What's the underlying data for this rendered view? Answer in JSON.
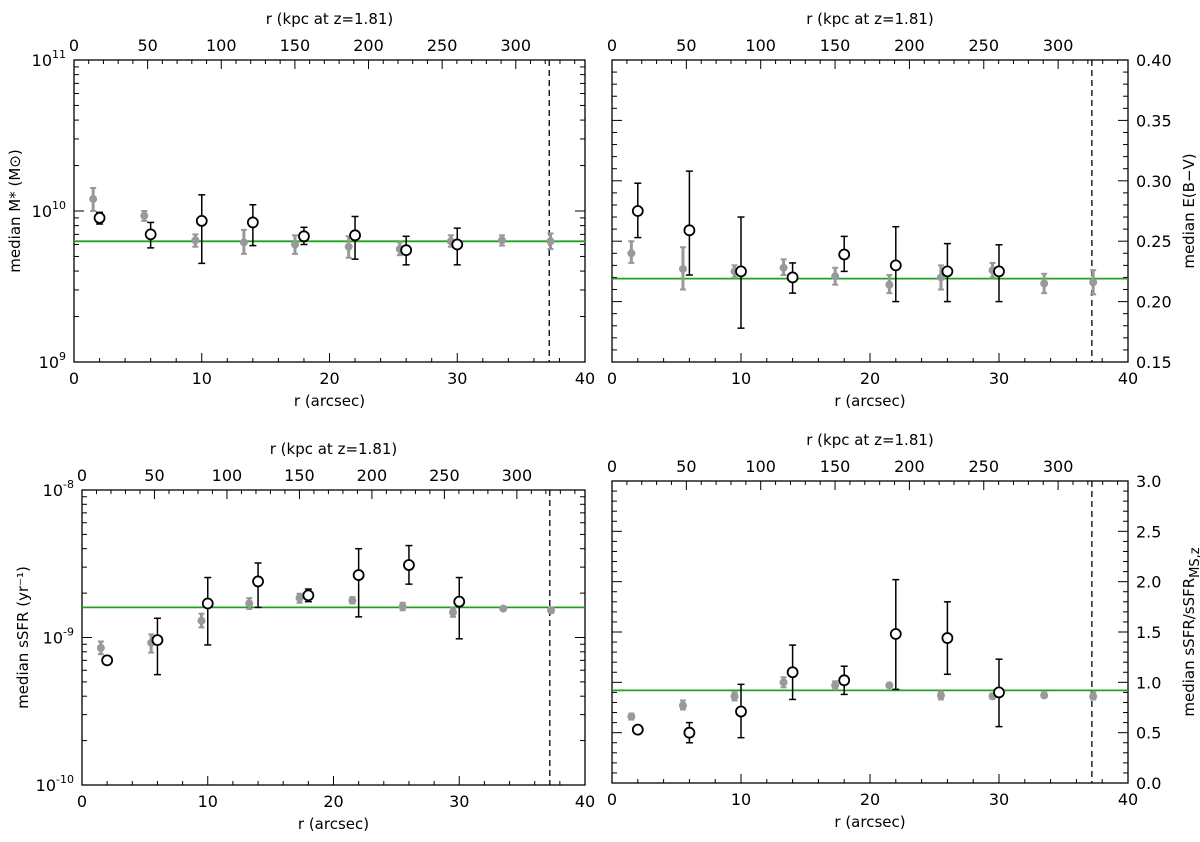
{
  "chart_data": [
    {
      "type": "scatter",
      "xlabel": "r (arcsec)",
      "x2label": "r (kpc at z=1.81)",
      "ylabel": "median M* (M⊙)",
      "yscale": "log",
      "xlim": [
        0,
        40
      ],
      "ylim": [
        1000000000.0,
        100000000000.0
      ],
      "x2lim": [
        0,
        347
      ],
      "xticks": [
        0,
        10,
        20,
        30,
        40
      ],
      "x2ticks": [
        0,
        50,
        100,
        150,
        200,
        250,
        300
      ],
      "yticks": [
        1000000000.0,
        10000000000.0,
        100000000000.0
      ],
      "yaxis_side": "left",
      "reference_line_y": 6300000000.0,
      "vline_x": 37.2,
      "series": [
        {
          "marker": "filled circle",
          "color": "#999999",
          "points": [
            {
              "x": 1.5,
              "y": 12000000000.0,
              "lo": 10000000000.0,
              "hi": 14200000000.0
            },
            {
              "x": 5.5,
              "y": 9300000000.0,
              "lo": 8600000000.0,
              "hi": 10000000000.0
            },
            {
              "x": 9.5,
              "y": 6400000000.0,
              "lo": 5800000000.0,
              "hi": 7000000000.0
            },
            {
              "x": 13.3,
              "y": 6200000000.0,
              "lo": 5200000000.0,
              "hi": 7500000000.0
            },
            {
              "x": 17.3,
              "y": 6000000000.0,
              "lo": 5200000000.0,
              "hi": 6900000000.0
            },
            {
              "x": 21.5,
              "y": 5800000000.0,
              "lo": 4900000000.0,
              "hi": 6800000000.0
            },
            {
              "x": 25.5,
              "y": 5600000000.0,
              "lo": 5100000000.0,
              "hi": 6200000000.0
            },
            {
              "x": 29.5,
              "y": 6300000000.0,
              "lo": 5800000000.0,
              "hi": 6900000000.0
            },
            {
              "x": 33.5,
              "y": 6400000000.0,
              "lo": 5900000000.0,
              "hi": 6900000000.0
            },
            {
              "x": 37.3,
              "y": 6300000000.0,
              "lo": 5600000000.0,
              "hi": 7100000000.0
            }
          ]
        },
        {
          "marker": "open circle",
          "color": "#000000",
          "points": [
            {
              "x": 2.0,
              "y": 9000000000.0,
              "lo": 8200000000.0,
              "hi": 9800000000.0
            },
            {
              "x": 6.0,
              "y": 7000000000.0,
              "lo": 5700000000.0,
              "hi": 8400000000.0
            },
            {
              "x": 10.0,
              "y": 8600000000.0,
              "lo": 4500000000.0,
              "hi": 12800000000.0
            },
            {
              "x": 14.0,
              "y": 8400000000.0,
              "lo": 5900000000.0,
              "hi": 11000000000.0
            },
            {
              "x": 18.0,
              "y": 6800000000.0,
              "lo": 6000000000.0,
              "hi": 7800000000.0
            },
            {
              "x": 22.0,
              "y": 6900000000.0,
              "lo": 4800000000.0,
              "hi": 9200000000.0
            },
            {
              "x": 26.0,
              "y": 5500000000.0,
              "lo": 4400000000.0,
              "hi": 6800000000.0
            },
            {
              "x": 30.0,
              "y": 6000000000.0,
              "lo": 4400000000.0,
              "hi": 7700000000.0
            }
          ]
        }
      ]
    },
    {
      "type": "scatter",
      "xlabel": "r (arcsec)",
      "x2label": "r (kpc at z=1.81)",
      "ylabel": "median E(B−V)",
      "yscale": "linear",
      "xlim": [
        0,
        40
      ],
      "ylim": [
        0.15,
        0.4
      ],
      "x2lim": [
        0,
        347
      ],
      "xticks": [
        0,
        10,
        20,
        30,
        40
      ],
      "x2ticks": [
        0,
        50,
        100,
        150,
        200,
        250,
        300
      ],
      "yticks": [
        0.15,
        0.2,
        0.25,
        0.3,
        0.35,
        0.4
      ],
      "yaxis_side": "right",
      "reference_line_y": 0.219,
      "vline_x": 37.2,
      "series": [
        {
          "marker": "filled circle",
          "color": "#999999",
          "points": [
            {
              "x": 1.5,
              "y": 0.24,
              "lo": 0.232,
              "hi": 0.25
            },
            {
              "x": 5.5,
              "y": 0.227,
              "lo": 0.21,
              "hi": 0.245
            },
            {
              "x": 9.5,
              "y": 0.225,
              "lo": 0.22,
              "hi": 0.23
            },
            {
              "x": 13.3,
              "y": 0.228,
              "lo": 0.222,
              "hi": 0.235
            },
            {
              "x": 17.3,
              "y": 0.221,
              "lo": 0.214,
              "hi": 0.228
            },
            {
              "x": 21.5,
              "y": 0.214,
              "lo": 0.207,
              "hi": 0.222
            },
            {
              "x": 25.5,
              "y": 0.22,
              "lo": 0.21,
              "hi": 0.23
            },
            {
              "x": 29.5,
              "y": 0.226,
              "lo": 0.22,
              "hi": 0.232
            },
            {
              "x": 33.5,
              "y": 0.215,
              "lo": 0.207,
              "hi": 0.223
            },
            {
              "x": 37.3,
              "y": 0.216,
              "lo": 0.206,
              "hi": 0.226
            }
          ]
        },
        {
          "marker": "open circle",
          "color": "#000000",
          "points": [
            {
              "x": 2.0,
              "y": 0.275,
              "lo": 0.253,
              "hi": 0.298
            },
            {
              "x": 6.0,
              "y": 0.259,
              "lo": 0.222,
              "hi": 0.308
            },
            {
              "x": 10.0,
              "y": 0.225,
              "lo": 0.178,
              "hi": 0.27
            },
            {
              "x": 14.0,
              "y": 0.22,
              "lo": 0.207,
              "hi": 0.232
            },
            {
              "x": 18.0,
              "y": 0.239,
              "lo": 0.225,
              "hi": 0.254
            },
            {
              "x": 22.0,
              "y": 0.23,
              "lo": 0.2,
              "hi": 0.262
            },
            {
              "x": 26.0,
              "y": 0.225,
              "lo": 0.2,
              "hi": 0.248
            },
            {
              "x": 30.0,
              "y": 0.225,
              "lo": 0.2,
              "hi": 0.247
            }
          ]
        }
      ]
    },
    {
      "type": "scatter",
      "xlabel": "r (arcsec)",
      "x2label": "r (kpc at z=1.81)",
      "ylabel": "median sSFR (yr⁻¹)",
      "yscale": "log",
      "xlim": [
        0,
        40
      ],
      "ylim": [
        1e-10,
        1e-08
      ],
      "x2lim": [
        0,
        347
      ],
      "xticks": [
        0,
        10,
        20,
        30,
        40
      ],
      "x2ticks": [
        0,
        50,
        100,
        150,
        200,
        250,
        300
      ],
      "yticks": [
        1e-10,
        1e-09,
        1e-08
      ],
      "yaxis_side": "left",
      "reference_line_y": 1.6e-09,
      "vline_x": 37.2,
      "series": [
        {
          "marker": "filled circle",
          "color": "#999999",
          "points": [
            {
              "x": 1.5,
              "y": 8.5e-10,
              "lo": 7.7e-10,
              "hi": 9.4e-10
            },
            {
              "x": 5.5,
              "y": 9.2e-10,
              "lo": 7.9e-10,
              "hi": 1.05e-09
            },
            {
              "x": 9.5,
              "y": 1.3e-09,
              "lo": 1.17e-09,
              "hi": 1.45e-09
            },
            {
              "x": 13.3,
              "y": 1.7e-09,
              "lo": 1.56e-09,
              "hi": 1.85e-09
            },
            {
              "x": 17.3,
              "y": 1.85e-09,
              "lo": 1.72e-09,
              "hi": 1.98e-09
            },
            {
              "x": 21.5,
              "y": 1.78e-09,
              "lo": 1.7e-09,
              "hi": 1.88e-09
            },
            {
              "x": 25.5,
              "y": 1.62e-09,
              "lo": 1.53e-09,
              "hi": 1.72e-09
            },
            {
              "x": 29.5,
              "y": 1.48e-09,
              "lo": 1.38e-09,
              "hi": 1.58e-09
            },
            {
              "x": 33.5,
              "y": 1.57e-09,
              "lo": 1.52e-09,
              "hi": 1.62e-09
            },
            {
              "x": 37.3,
              "y": 1.53e-09,
              "lo": 1.47e-09,
              "hi": 1.6e-09
            }
          ]
        },
        {
          "marker": "open circle",
          "color": "#000000",
          "points": [
            {
              "x": 2.0,
              "y": 7e-10,
              "lo": 6.6e-10,
              "hi": 7.5e-10
            },
            {
              "x": 6.0,
              "y": 9.6e-10,
              "lo": 5.6e-10,
              "hi": 1.35e-09
            },
            {
              "x": 10.0,
              "y": 1.7e-09,
              "lo": 8.9e-10,
              "hi": 2.55e-09
            },
            {
              "x": 14.0,
              "y": 2.4e-09,
              "lo": 1.6e-09,
              "hi": 3.2e-09
            },
            {
              "x": 18.0,
              "y": 1.93e-09,
              "lo": 1.75e-09,
              "hi": 2.13e-09
            },
            {
              "x": 22.0,
              "y": 2.65e-09,
              "lo": 1.38e-09,
              "hi": 4e-09
            },
            {
              "x": 26.0,
              "y": 3.1e-09,
              "lo": 2.3e-09,
              "hi": 4.2e-09
            },
            {
              "x": 30.0,
              "y": 1.75e-09,
              "lo": 9.8e-10,
              "hi": 2.55e-09
            }
          ]
        }
      ]
    },
    {
      "type": "scatter",
      "xlabel": "r (arcsec)",
      "x2label": "r (kpc at z=1.81)",
      "ylabel": "median sSFR/sSFR",
      "ylabel_subscript": "MS,z",
      "yscale": "linear",
      "xlim": [
        0,
        40
      ],
      "ylim": [
        0,
        3
      ],
      "x2lim": [
        0,
        347
      ],
      "xticks": [
        0,
        10,
        20,
        30,
        40
      ],
      "x2ticks": [
        0,
        50,
        100,
        150,
        200,
        250,
        300
      ],
      "yticks": [
        0,
        0.5,
        1,
        1.5,
        2,
        2.5,
        3
      ],
      "ytick_labels": [
        "0.0",
        "0.5",
        "1.0",
        "1.5",
        "2.0",
        "2.5",
        "3.0"
      ],
      "yaxis_side": "right",
      "reference_line_y": 0.92,
      "vline_x": 37.2,
      "series": [
        {
          "marker": "filled circle",
          "color": "#999999",
          "points": [
            {
              "x": 1.5,
              "y": 0.66,
              "lo": 0.63,
              "hi": 0.69
            },
            {
              "x": 5.5,
              "y": 0.77,
              "lo": 0.73,
              "hi": 0.82
            },
            {
              "x": 9.5,
              "y": 0.86,
              "lo": 0.82,
              "hi": 0.9
            },
            {
              "x": 13.3,
              "y": 1.0,
              "lo": 0.95,
              "hi": 1.05
            },
            {
              "x": 17.3,
              "y": 0.97,
              "lo": 0.93,
              "hi": 1.01
            },
            {
              "x": 21.5,
              "y": 0.97,
              "lo": 0.95,
              "hi": 0.99
            },
            {
              "x": 25.5,
              "y": 0.87,
              "lo": 0.83,
              "hi": 0.91
            },
            {
              "x": 29.5,
              "y": 0.86,
              "lo": 0.84,
              "hi": 0.89
            },
            {
              "x": 33.5,
              "y": 0.87,
              "lo": 0.85,
              "hi": 0.9
            },
            {
              "x": 37.3,
              "y": 0.86,
              "lo": 0.83,
              "hi": 0.9
            }
          ]
        },
        {
          "marker": "open circle",
          "color": "#000000",
          "points": [
            {
              "x": 2.0,
              "y": 0.53,
              "lo": 0.49,
              "hi": 0.56
            },
            {
              "x": 6.0,
              "y": 0.5,
              "lo": 0.4,
              "hi": 0.6
            },
            {
              "x": 10.0,
              "y": 0.71,
              "lo": 0.45,
              "hi": 0.98
            },
            {
              "x": 14.0,
              "y": 1.1,
              "lo": 0.83,
              "hi": 1.37
            },
            {
              "x": 18.0,
              "y": 1.02,
              "lo": 0.88,
              "hi": 1.16
            },
            {
              "x": 22.0,
              "y": 1.48,
              "lo": 0.93,
              "hi": 2.02
            },
            {
              "x": 26.0,
              "y": 1.44,
              "lo": 1.08,
              "hi": 1.8
            },
            {
              "x": 30.0,
              "y": 0.9,
              "lo": 0.56,
              "hi": 1.23
            }
          ]
        }
      ]
    }
  ],
  "colors": {
    "reference_line": "#22a022",
    "filled_points": "#999999",
    "open_points": "#000000"
  }
}
